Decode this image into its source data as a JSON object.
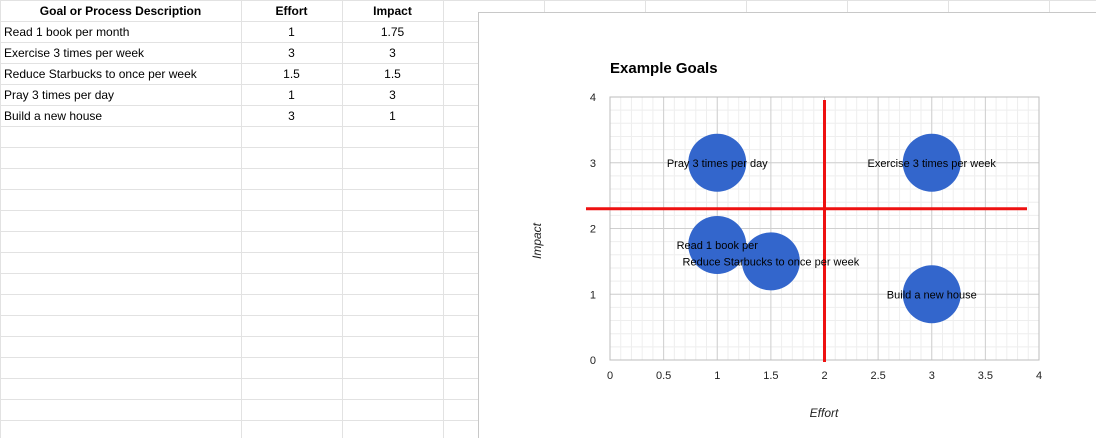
{
  "sheet": {
    "columns": [
      "Goal or Process Description",
      "Effort",
      "Impact"
    ],
    "rows": [
      [
        "Read 1 book per month",
        "1",
        "1.75"
      ],
      [
        "Exercise 3 times per week",
        "3",
        "3"
      ],
      [
        "Reduce Starbucks to once per week",
        "1.5",
        "1.5"
      ],
      [
        "Pray 3 times per day",
        "1",
        "3"
      ],
      [
        "Build a new house",
        "3",
        "1"
      ]
    ]
  },
  "chart_data": {
    "type": "scatter",
    "title": "Example Goals",
    "xlabel": "Effort",
    "ylabel": "Impact",
    "xlim": [
      0,
      4
    ],
    "ylim": [
      0,
      4
    ],
    "x_ticks": [
      "0",
      "0.5",
      "1",
      "1.5",
      "2",
      "2.5",
      "3",
      "3.5",
      "4"
    ],
    "y_ticks": [
      "0",
      "1",
      "2",
      "3",
      "4"
    ],
    "grid": true,
    "points": [
      {
        "label": "Pray 3 times per day",
        "x": 1,
        "y": 3
      },
      {
        "label": "Exercise 3 times per week",
        "x": 3,
        "y": 3
      },
      {
        "label": "Read 1 book per",
        "x": 1,
        "y": 1.75
      },
      {
        "label": "Reduce Starbucks to once per week",
        "x": 1.5,
        "y": 1.5
      },
      {
        "label": "Build a new house",
        "x": 3,
        "y": 1
      }
    ],
    "reference_lines": {
      "vertical_x": 2,
      "horizontal_y": 2.3
    },
    "colors": {
      "bubble": "#3366cc",
      "reference": "#ee1111",
      "grid": "#e0e0e0"
    }
  }
}
